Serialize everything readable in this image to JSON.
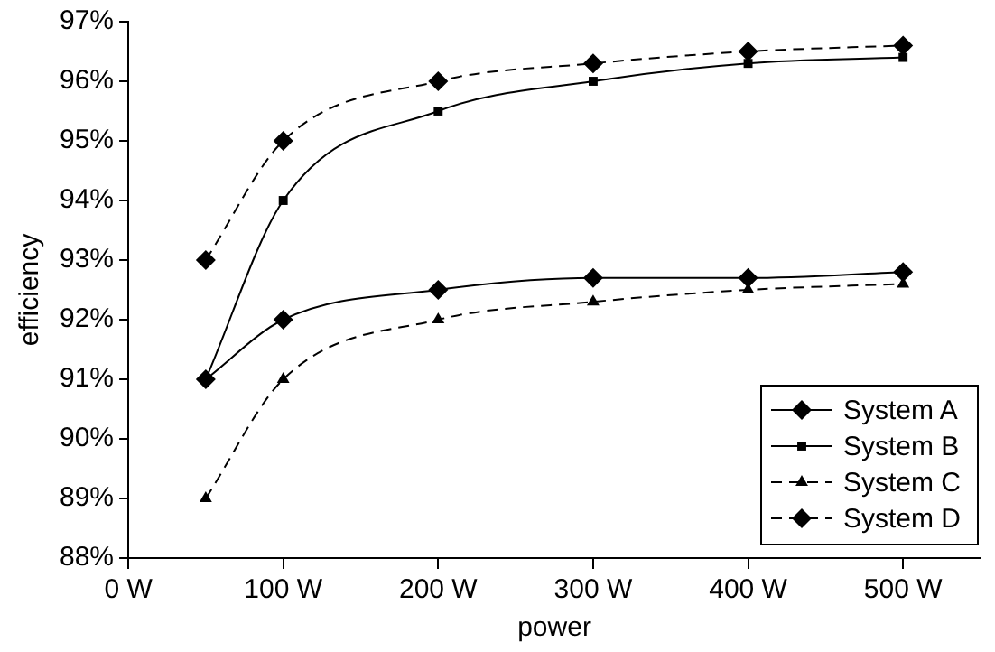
{
  "chart_data": {
    "type": "line",
    "xlabel": "power",
    "ylabel": "efficiency",
    "x": [
      50,
      100,
      200,
      300,
      400,
      500
    ],
    "series": [
      {
        "name": "System A",
        "color": "#000000",
        "marker": "diamond",
        "line_style": "solid",
        "values": [
          91,
          92,
          92.5,
          92.7,
          92.7,
          92.8
        ]
      },
      {
        "name": "System B",
        "color": "#000000",
        "marker": "square",
        "line_style": "solid",
        "values": [
          91,
          94,
          95.5,
          96,
          96.3,
          96.4
        ]
      },
      {
        "name": "System C",
        "color": "#000000",
        "marker": "triangle",
        "line_style": "dashed",
        "values": [
          89,
          91,
          92,
          92.3,
          92.5,
          92.6
        ]
      },
      {
        "name": "System D",
        "color": "#000000",
        "marker": "diamond",
        "line_style": "dashed",
        "values": [
          93,
          95,
          96,
          96.3,
          96.5,
          96.6
        ]
      }
    ],
    "xlim": [
      0,
      550
    ],
    "xticks": [
      {
        "value": 0,
        "label": "0 W"
      },
      {
        "value": 100,
        "label": "100 W"
      },
      {
        "value": 200,
        "label": "200 W"
      },
      {
        "value": 300,
        "label": "300 W"
      },
      {
        "value": 400,
        "label": "400 W"
      },
      {
        "value": 500,
        "label": "500 W"
      }
    ],
    "ylim": [
      88,
      97
    ],
    "yticks": [
      {
        "value": 88,
        "label": "88%"
      },
      {
        "value": 89,
        "label": "89%"
      },
      {
        "value": 90,
        "label": "90%"
      },
      {
        "value": 91,
        "label": "91%"
      },
      {
        "value": 92,
        "label": "92%"
      },
      {
        "value": 93,
        "label": "93%"
      },
      {
        "value": 94,
        "label": "94%"
      },
      {
        "value": 95,
        "label": "95%"
      },
      {
        "value": 96,
        "label": "96%"
      },
      {
        "value": 97,
        "label": "97%"
      }
    ],
    "grid": false,
    "legend": "bottom right"
  }
}
